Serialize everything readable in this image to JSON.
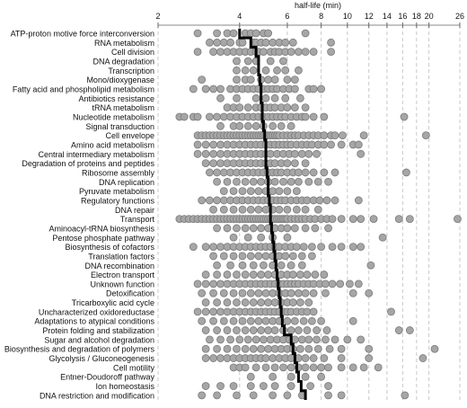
{
  "chart_data": {
    "type": "scatter",
    "xlabel": "half-life (min)",
    "x_scale": "log",
    "x_ticks": [
      2,
      4,
      6,
      8,
      10,
      12,
      14,
      16,
      18,
      20,
      26
    ],
    "xlim": [
      2,
      26
    ],
    "grid": "vertical dashed",
    "categories": [
      "ATP-proton  motive force interconversion",
      "RNA metabolism",
      "Cell division",
      "DNA degradation",
      "Transcription",
      "Mono/dioxygenase",
      "Fatty acid and phospholipid metabolism",
      "Antibiotics resistance",
      "tRNA metabolism",
      "Nucleotide metabolism",
      "Signal transduction",
      "Cell envelope",
      "Amino acid metabolism",
      "Central intermediary metabolism",
      "Degradation of proteins and peptides",
      "Ribosome assembly",
      "DNA replication",
      "Pyruvate  metabolism",
      "Regulatory functions",
      "DNA repair",
      "Transport",
      "Aminoacyl-tRNA biosynthesis",
      "Pentose phosphate pathway",
      "Biosynthesis of cofactors",
      "Translation factors",
      "DNA recombination",
      "Electron transport",
      "Unknown function",
      "Detoxification",
      "Tricarboxylic  acid cycle",
      "Uncharacterized oxidoreductase",
      "Adaptations to atypical conditions",
      "Protein folding and stabilization",
      "Sugar and alcohol degradation",
      "Biosynthesis and degradation of polymers",
      "Glycolysis / Gluconeogenesis",
      "Cell motility",
      "Entner-Doudoroff pathway",
      "Ion homeostasis",
      "DNA restriction and modification"
    ],
    "medians": [
      4.0,
      4.4,
      4.6,
      4.7,
      4.7,
      4.75,
      4.8,
      4.8,
      4.85,
      4.85,
      4.9,
      4.95,
      5.0,
      5.0,
      5.0,
      5.05,
      5.1,
      5.1,
      5.15,
      5.2,
      5.2,
      5.25,
      5.3,
      5.35,
      5.4,
      5.45,
      5.5,
      5.55,
      5.6,
      5.65,
      5.7,
      5.75,
      5.85,
      6.2,
      6.3,
      6.4,
      6.5,
      6.6,
      6.75,
      7.0
    ],
    "points": [
      [
        2.8,
        3.3,
        3.6,
        3.8,
        4.2,
        4.4,
        4.6,
        4.9,
        5.1,
        7.0
      ],
      [
        3.1,
        3.3,
        3.5,
        3.7,
        4.0,
        4.1,
        4.5,
        4.6,
        4.8,
        5.0,
        5.3,
        5.6,
        5.9,
        6.3,
        8.7
      ],
      [
        2.8,
        3.2,
        3.4,
        3.6,
        3.8,
        4.0,
        4.2,
        4.4,
        4.6,
        4.7,
        4.9,
        5.2,
        5.4,
        5.6,
        5.9,
        6.2,
        6.6,
        7.0,
        7.5,
        8.7
      ],
      [
        3.9,
        4.3,
        4.6,
        5.2,
        5.8
      ],
      [
        3.9,
        4.2,
        4.5,
        5.0,
        5.5,
        5.9,
        6.6
      ],
      [
        2.9,
        3.9,
        4.2,
        4.4,
        4.8,
        5.1,
        5.4,
        6.0,
        6.4
      ],
      [
        2.7,
        3.0,
        3.2,
        3.4,
        3.7,
        3.9,
        4.1,
        4.3,
        4.5,
        4.7,
        4.9,
        5.1,
        5.3,
        5.5,
        5.8,
        6.1,
        6.4,
        7.2,
        7.5,
        8.0
      ],
      [
        3.4,
        3.9,
        4.6,
        5.0,
        5.4,
        5.9,
        6.7
      ],
      [
        3.6,
        3.8,
        4.0,
        4.3,
        4.6,
        4.8,
        5.0,
        5.2,
        5.4,
        5.7,
        6.0,
        6.4,
        7.0
      ],
      [
        2.4,
        2.5,
        2.7,
        2.8,
        3.1,
        3.3,
        3.5,
        3.7,
        3.9,
        4.1,
        4.3,
        4.5,
        4.7,
        4.9,
        5.1,
        5.3,
        5.5,
        5.7,
        5.9,
        6.2,
        6.5,
        6.8,
        7.0,
        7.5,
        8.2,
        16.2
      ],
      [
        3.4,
        3.8,
        4.0,
        4.3,
        4.6,
        4.9,
        5.3,
        5.7,
        6.2
      ],
      [
        2.8,
        2.9,
        3.0,
        3.1,
        3.2,
        3.3,
        3.4,
        3.5,
        3.6,
        3.7,
        3.8,
        3.9,
        4.0,
        4.1,
        4.2,
        4.3,
        4.4,
        4.5,
        4.6,
        4.7,
        4.8,
        4.9,
        5.0,
        5.1,
        5.2,
        5.3,
        5.4,
        5.5,
        5.6,
        5.8,
        6.0,
        6.2,
        6.4,
        6.6,
        6.9,
        7.2,
        7.5,
        7.8,
        8.2,
        8.7,
        9.0,
        9.6,
        11.5,
        19.5
      ],
      [
        2.8,
        3.0,
        3.2,
        3.4,
        3.6,
        3.8,
        4.0,
        4.2,
        4.4,
        4.6,
        4.8,
        5.0,
        5.2,
        5.4,
        5.6,
        5.8,
        6.0,
        6.2,
        6.5,
        6.8,
        7.1,
        7.4,
        7.8,
        8.2,
        8.7,
        9.5,
        10.5,
        11.0
      ],
      [
        2.8,
        3.0,
        3.2,
        3.4,
        3.6,
        3.8,
        4.0,
        4.2,
        4.4,
        4.6,
        4.8,
        5.0,
        5.2,
        5.5,
        5.8,
        6.1,
        6.4,
        6.8,
        7.2,
        7.7,
        11.2
      ],
      [
        3.0,
        3.2,
        3.4,
        3.6,
        3.8,
        4.0,
        4.2,
        4.4,
        4.6,
        4.8,
        5.0,
        5.2,
        5.4,
        5.7,
        6.0,
        6.4,
        7.0
      ],
      [
        3.1,
        3.3,
        3.5,
        3.7,
        3.9,
        4.1,
        4.3,
        4.5,
        4.7,
        4.9,
        5.1,
        5.3,
        5.5,
        5.7,
        6.0,
        6.3,
        6.6,
        7.0,
        7.5,
        8.2,
        9.0,
        16.5
      ],
      [
        3.3,
        3.6,
        3.9,
        4.2,
        4.5,
        4.8,
        5.1,
        5.4,
        5.8,
        6.2,
        6.6,
        7.2,
        7.8,
        8.5
      ],
      [
        3.5,
        3.8,
        4.1,
        4.4,
        4.7,
        5.0,
        5.3,
        5.6,
        6.0,
        6.5
      ],
      [
        2.9,
        3.1,
        3.3,
        3.5,
        3.7,
        3.9,
        4.1,
        4.3,
        4.5,
        4.7,
        4.9,
        5.1,
        5.3,
        5.5,
        5.7,
        5.9,
        6.2,
        6.5,
        6.8,
        7.1,
        7.5,
        7.9,
        8.4,
        9.0,
        11.0
      ],
      [
        3.2,
        3.5,
        3.8,
        4.1,
        4.4,
        4.7,
        5.0,
        5.3,
        5.6,
        6.0,
        6.5,
        7.0,
        7.8
      ],
      [
        2.4,
        2.5,
        2.6,
        2.7,
        2.8,
        2.9,
        3.0,
        3.1,
        3.2,
        3.3,
        3.4,
        3.5,
        3.6,
        3.7,
        3.8,
        3.9,
        4.0,
        4.1,
        4.2,
        4.3,
        4.4,
        4.5,
        4.6,
        4.7,
        4.8,
        4.9,
        5.0,
        5.1,
        5.2,
        5.3,
        5.4,
        5.5,
        5.6,
        5.7,
        5.8,
        5.9,
        6.0,
        6.2,
        6.4,
        6.6,
        6.8,
        7.0,
        7.3,
        7.6,
        8.0,
        8.4,
        8.8,
        9.5,
        10.5,
        11.2,
        12.5,
        15.5,
        17.0,
        25.5
      ],
      [
        3.3,
        3.6,
        3.9,
        4.2,
        4.5,
        4.8,
        5.1,
        5.4,
        5.7,
        6.0,
        6.4,
        7.0,
        7.6,
        8.5
      ],
      [
        3.8,
        4.3,
        4.8,
        5.3,
        6.0,
        13.5
      ],
      [
        2.7,
        3.0,
        3.2,
        3.4,
        3.6,
        3.8,
        4.0,
        4.2,
        4.4,
        4.6,
        4.8,
        5.0,
        5.2,
        5.4,
        5.6,
        5.9,
        6.2,
        6.5,
        6.9,
        7.4,
        8.0,
        8.8,
        9.5,
        10.5,
        11.2
      ],
      [
        3.2,
        3.5,
        3.8,
        4.1,
        4.4,
        4.7,
        5.0,
        5.3,
        5.6,
        5.9,
        6.3,
        6.8,
        7.4
      ],
      [
        3.3,
        3.7,
        4.1,
        4.5,
        4.9,
        5.3,
        5.7,
        6.2,
        6.8,
        12.2
      ],
      [
        3.0,
        3.3,
        3.6,
        3.9,
        4.2,
        4.5,
        4.8,
        5.1,
        5.4,
        5.7,
        6.0,
        6.3,
        6.7,
        7.1,
        7.6,
        8.2
      ],
      [
        2.8,
        3.0,
        3.2,
        3.4,
        3.6,
        3.8,
        4.0,
        4.2,
        4.4,
        4.6,
        4.8,
        5.0,
        5.2,
        5.4,
        5.6,
        5.8,
        6.0,
        6.2,
        6.4,
        6.6,
        6.9,
        7.2,
        7.5,
        7.9,
        8.3,
        8.8,
        9.4,
        10.2,
        11.0
      ],
      [
        2.9,
        3.2,
        3.5,
        3.8,
        4.1,
        4.4,
        4.7,
        5.0,
        5.3,
        5.6,
        5.9,
        6.2,
        6.6,
        7.0,
        7.5,
        8.3,
        10.5,
        12.0
      ],
      [
        3.0,
        3.3,
        3.6,
        3.9,
        4.2,
        4.5,
        4.8,
        5.1,
        5.4,
        5.7,
        6.0,
        6.3,
        6.7,
        7.2
      ],
      [
        2.8,
        3.0,
        3.2,
        3.4,
        3.6,
        3.8,
        4.0,
        4.2,
        4.4,
        4.6,
        4.8,
        5.0,
        5.2,
        5.4,
        5.6,
        5.8,
        6.0,
        6.2,
        6.5,
        6.8,
        7.1,
        7.5,
        14.5
      ],
      [
        2.9,
        3.2,
        3.5,
        3.8,
        4.1,
        4.4,
        4.7,
        5.0,
        5.3,
        5.6,
        6.0,
        6.4,
        6.9,
        7.4,
        8.0,
        10.5
      ],
      [
        3.0,
        3.3,
        3.6,
        3.9,
        4.2,
        4.5,
        4.8,
        5.1,
        5.4,
        5.8,
        6.2,
        6.6,
        7.1,
        7.7,
        8.4,
        15.5,
        17.0
      ],
      [
        3.1,
        3.4,
        3.7,
        4.0,
        4.3,
        4.6,
        4.9,
        5.2,
        5.5,
        5.8,
        6.1,
        6.4,
        6.8,
        7.2,
        7.7,
        8.3,
        9.0,
        10.0,
        11.2
      ],
      [
        3.0,
        3.3,
        3.6,
        3.9,
        4.2,
        4.5,
        4.8,
        5.1,
        5.4,
        5.7,
        6.0,
        6.3,
        6.7,
        7.2,
        7.8,
        8.6,
        9.5,
        12.0,
        21.0
      ],
      [
        3.0,
        3.2,
        3.4,
        3.6,
        3.8,
        4.0,
        4.2,
        4.4,
        4.6,
        4.8,
        5.0,
        5.3,
        5.6,
        5.9,
        6.2,
        6.6,
        7.0,
        7.5,
        8.2,
        9.5,
        12.0,
        19.0
      ],
      [
        3.8,
        4.0,
        4.2,
        4.6,
        5.0,
        5.4,
        5.8,
        6.2,
        6.6,
        7.0,
        7.5,
        8.0,
        8.5,
        9.5,
        10.5,
        11.5,
        13.0
      ],
      [
        4.4,
        5.3,
        6.2,
        7.0,
        8.0
      ],
      [
        3.0,
        3.4,
        3.8,
        4.4,
        4.9,
        5.4,
        6.2,
        7.3,
        8.5
      ],
      [
        2.9,
        3.3,
        3.9,
        4.5,
        5.3,
        6.0,
        6.8,
        8.5,
        9.5,
        16.3
      ]
    ]
  }
}
